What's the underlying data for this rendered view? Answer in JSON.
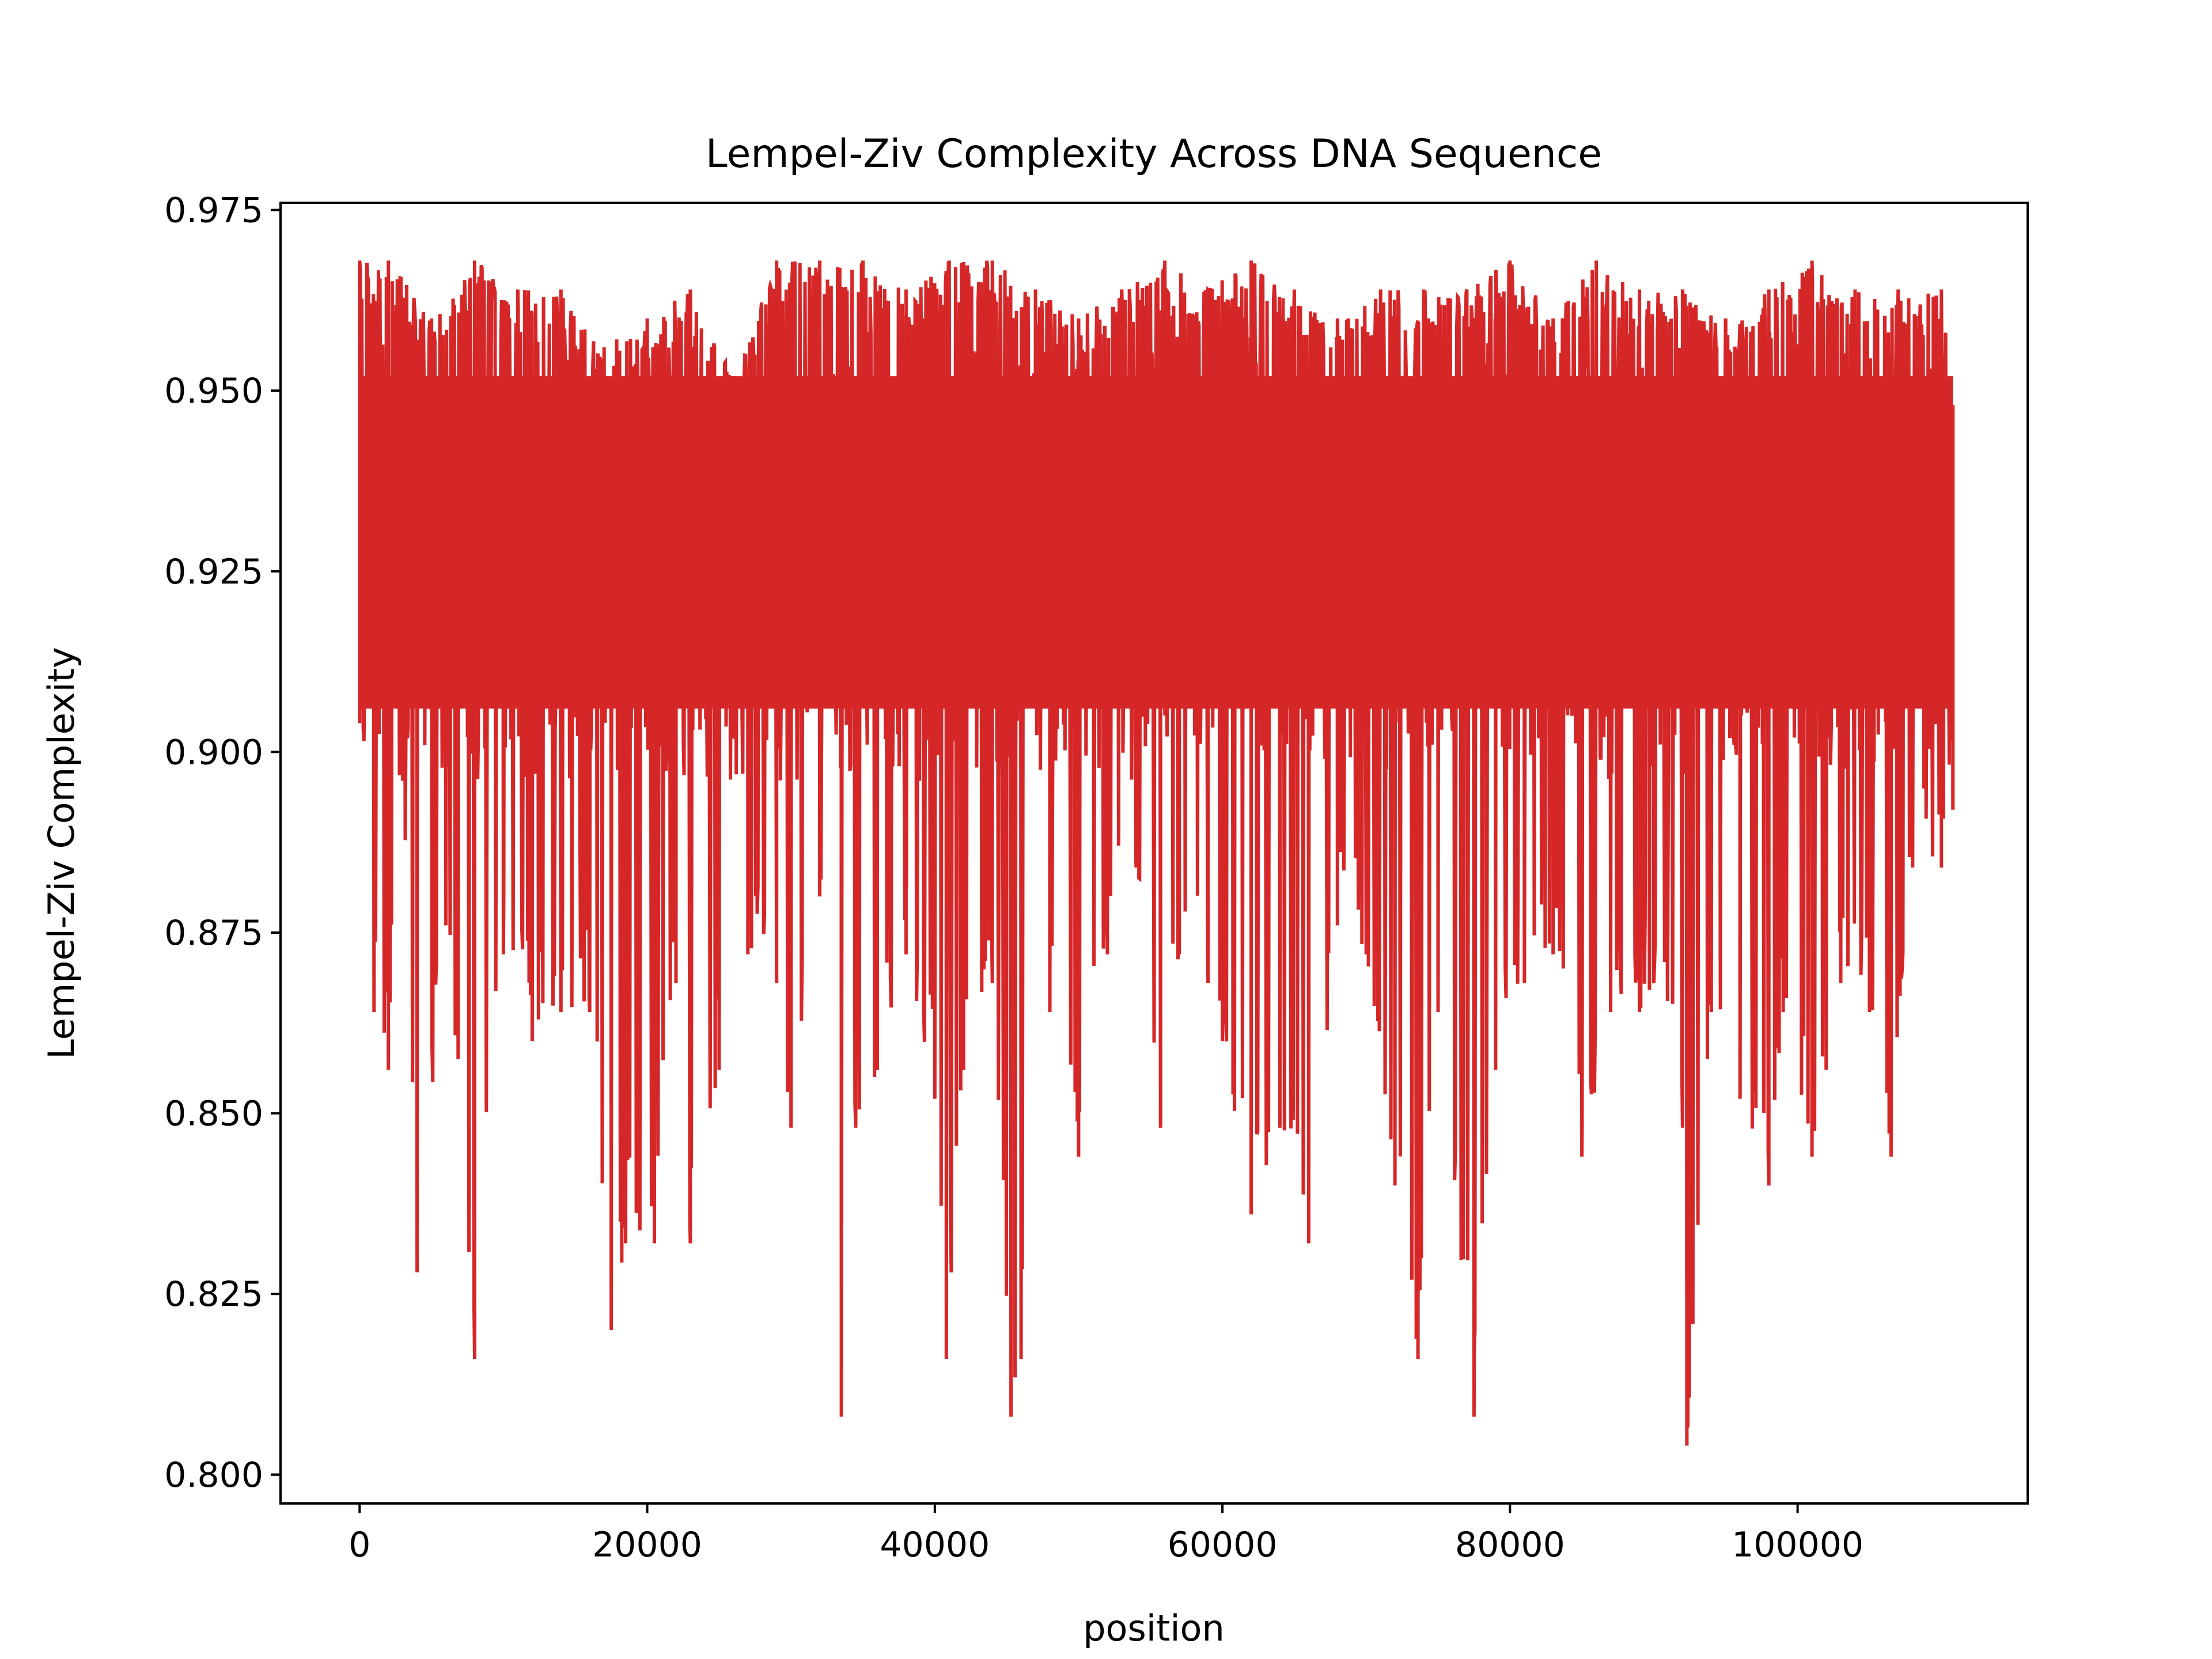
{
  "chart_data": {
    "type": "line",
    "title": "Lempel-Ziv Complexity Across DNA Sequence",
    "xlabel": "position",
    "ylabel": "Lempel-Ziv Complexity",
    "xlim": [
      -5500,
      116000
    ],
    "ylim": [
      0.796,
      0.976
    ],
    "x_ticks": [
      0,
      20000,
      40000,
      60000,
      80000,
      100000
    ],
    "x_tick_labels": [
      "0",
      "20000",
      "40000",
      "60000",
      "80000",
      "100000"
    ],
    "y_ticks": [
      0.8,
      0.825,
      0.85,
      0.875,
      0.9,
      0.925,
      0.95,
      0.975
    ],
    "y_tick_labels": [
      "0.800",
      "0.825",
      "0.850",
      "0.875",
      "0.900",
      "0.925",
      "0.950",
      "0.975"
    ],
    "grid": false,
    "series": [
      {
        "color": "#d62728",
        "x": [
          0,
          2000,
          4000,
          6000,
          8000,
          10000,
          12000,
          14000,
          16000,
          18000,
          20000,
          22000,
          24000,
          26000,
          28000,
          30000,
          32000,
          34000,
          36000,
          38000,
          40000,
          42000,
          44000,
          46000,
          48000,
          50000,
          52000,
          54000,
          56000,
          58000,
          60000,
          62000,
          64000,
          66000,
          68000,
          70000,
          72000,
          74000,
          76000,
          78000,
          80000,
          82000,
          84000,
          86000,
          88000,
          90000,
          92000,
          94000,
          96000,
          98000,
          100000,
          102000,
          104000,
          106000,
          108000,
          110000,
          110800
        ],
        "y": [
          0.904,
          0.936,
          0.92,
          0.944,
          0.932,
          0.916,
          0.94,
          0.928,
          0.92,
          0.936,
          0.924,
          0.94,
          0.916,
          0.932,
          0.928,
          0.912,
          0.94,
          0.92,
          0.936,
          0.924,
          0.916,
          0.932,
          0.928,
          0.94,
          0.92,
          0.936,
          0.928,
          0.916,
          0.944,
          0.924,
          0.932,
          0.92,
          0.936,
          0.928,
          0.94,
          0.916,
          0.932,
          0.924,
          0.936,
          0.92,
          0.928,
          0.944,
          0.916,
          0.932,
          0.924,
          0.936,
          0.92,
          0.928,
          0.94,
          0.916,
          0.932,
          0.924,
          0.936,
          0.92,
          0.928,
          0.92,
          0.924
        ],
        "max_envelope": {
          "x": [
            0,
            2000,
            5000,
            8000,
            11000,
            14000,
            17000,
            20000,
            23000,
            26000,
            29000,
            32000,
            35000,
            38000,
            41000,
            44000,
            47000,
            50000,
            53000,
            56000,
            59000,
            62000,
            65000,
            68000,
            71000,
            74000,
            77000,
            80000,
            83000,
            86000,
            89000,
            92000,
            95000,
            98000,
            101000,
            104000,
            107000,
            110000,
            110800
          ],
          "y": [
            0.968,
            0.968,
            0.96,
            0.968,
            0.964,
            0.964,
            0.956,
            0.96,
            0.964,
            0.952,
            0.968,
            0.968,
            0.968,
            0.964,
            0.968,
            0.968,
            0.964,
            0.96,
            0.964,
            0.968,
            0.964,
            0.968,
            0.964,
            0.96,
            0.964,
            0.964,
            0.964,
            0.968,
            0.96,
            0.968,
            0.964,
            0.964,
            0.96,
            0.964,
            0.968,
            0.964,
            0.964,
            0.964,
            0.948
          ]
        },
        "min_envelope": {
          "x": [
            0,
            1000,
            2000,
            3000,
            4000,
            6000,
            8000,
            10000,
            12000,
            14000,
            16000,
            17500,
            18500,
            20500,
            22000,
            23000,
            25000,
            27000,
            29000,
            30000,
            32000,
            33500,
            34500,
            36000,
            38000,
            40000,
            40800,
            42000,
            44000,
            45300,
            46000,
            48000,
            50000,
            52000,
            54000,
            55700,
            57000,
            59000,
            60000,
            62000,
            64000,
            66000,
            68000,
            70000,
            72000,
            73600,
            75000,
            77500,
            79000,
            81000,
            83000,
            85000,
            87000,
            89000,
            90000,
            92000,
            92300,
            94000,
            96000,
            98000,
            99000,
            101000,
            103000,
            105000,
            106500,
            108000,
            110000,
            110800
          ],
          "y": [
            0.904,
            0.864,
            0.856,
            0.896,
            0.828,
            0.876,
            0.816,
            0.872,
            0.86,
            0.864,
            0.864,
            0.82,
            0.832,
            0.832,
            0.868,
            0.832,
            0.856,
            0.872,
            0.868,
            0.848,
            0.88,
            0.808,
            0.848,
            0.856,
            0.872,
            0.852,
            0.816,
            0.856,
            0.868,
            0.808,
            0.816,
            0.864,
            0.844,
            0.872,
            0.884,
            0.848,
            0.872,
            0.868,
            0.86,
            0.836,
            0.848,
            0.832,
            0.876,
            0.872,
            0.84,
            0.816,
            0.864,
            0.808,
            0.856,
            0.868,
            0.872,
            0.844,
            0.864,
            0.864,
            0.868,
            0.848,
            0.804,
            0.864,
            0.852,
            0.84,
            0.864,
            0.844,
            0.868,
            0.864,
            0.844,
            0.884,
            0.884,
            0.892
          ]
        }
      }
    ]
  }
}
